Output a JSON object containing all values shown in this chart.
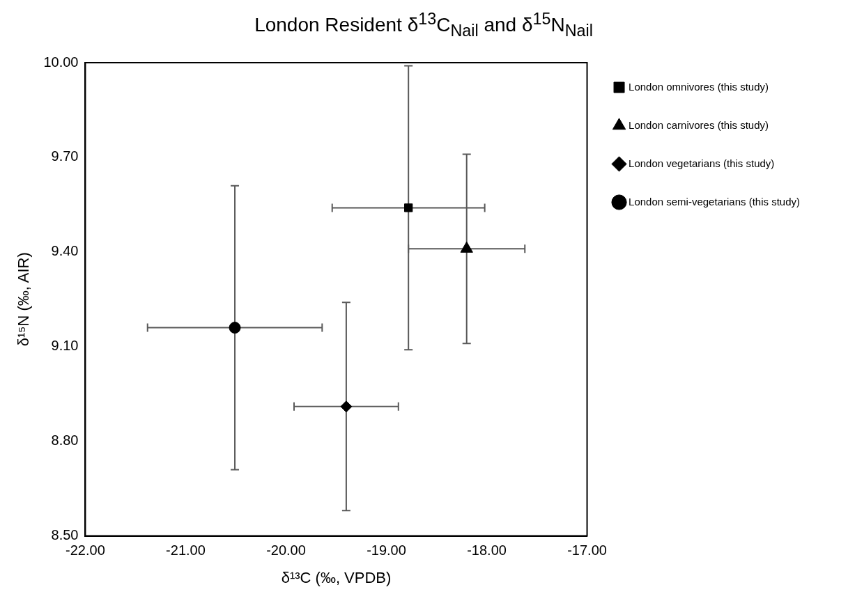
{
  "chart_data": {
    "type": "scatter",
    "title": "London Resident δ$^{13}$C$_{Nail}$ and δ$^{15}$N$_{Nail}$",
    "xlabel": "δ¹³C (‰, VPDB)",
    "ylabel": "δ¹⁵N (‰, AIR)",
    "xlim": [
      -22,
      -17
    ],
    "xticks": [
      {
        "value": -22,
        "label": "-22.00"
      },
      {
        "value": -21,
        "label": "-21.00"
      },
      {
        "value": -20,
        "label": "-20.00"
      },
      {
        "value": -19,
        "label": "-19.00"
      },
      {
        "value": -18,
        "label": "-18.00"
      },
      {
        "value": -17,
        "label": "-17.00"
      }
    ],
    "ylim": [
      8.5,
      10
    ],
    "yticks": [
      {
        "value": 8.5,
        "label": "8.50"
      },
      {
        "value": 8.8,
        "label": "8.80"
      },
      {
        "value": 9.1,
        "label": "9.10"
      },
      {
        "value": 9.4,
        "label": "9.40"
      },
      {
        "value": 9.7,
        "label": "9.70"
      },
      {
        "value": 10,
        "label": "10.00"
      }
    ],
    "grid": false,
    "legend": "right",
    "series": [
      {
        "name": "London omnivores (this study)",
        "color": "#000000",
        "marker": "square",
        "x": [
          -18.78
        ],
        "values": [
          9.54
        ],
        "errors": [
          0.45
        ],
        "xerrors": [
          0.76
        ]
      },
      {
        "name": "London carnivores (this study)",
        "color": "#000000",
        "marker": "triangle",
        "x": [
          -18.2
        ],
        "values": [
          9.41
        ],
        "errors": [
          0.3
        ],
        "xerrors": [
          0.58
        ]
      },
      {
        "name": "London vegetarians (this study)",
        "color": "#000000",
        "marker": "diamond",
        "x": [
          -19.4
        ],
        "values": [
          8.91
        ],
        "errors": [
          0.33
        ],
        "xerrors": [
          0.52
        ]
      },
      {
        "name": "London semi-vegetarians (this study)",
        "color": "#000000",
        "marker": "circle",
        "x": [
          -20.51
        ],
        "values": [
          9.16
        ],
        "errors": [
          0.45
        ],
        "xerrors": [
          0.87
        ]
      }
    ]
  }
}
